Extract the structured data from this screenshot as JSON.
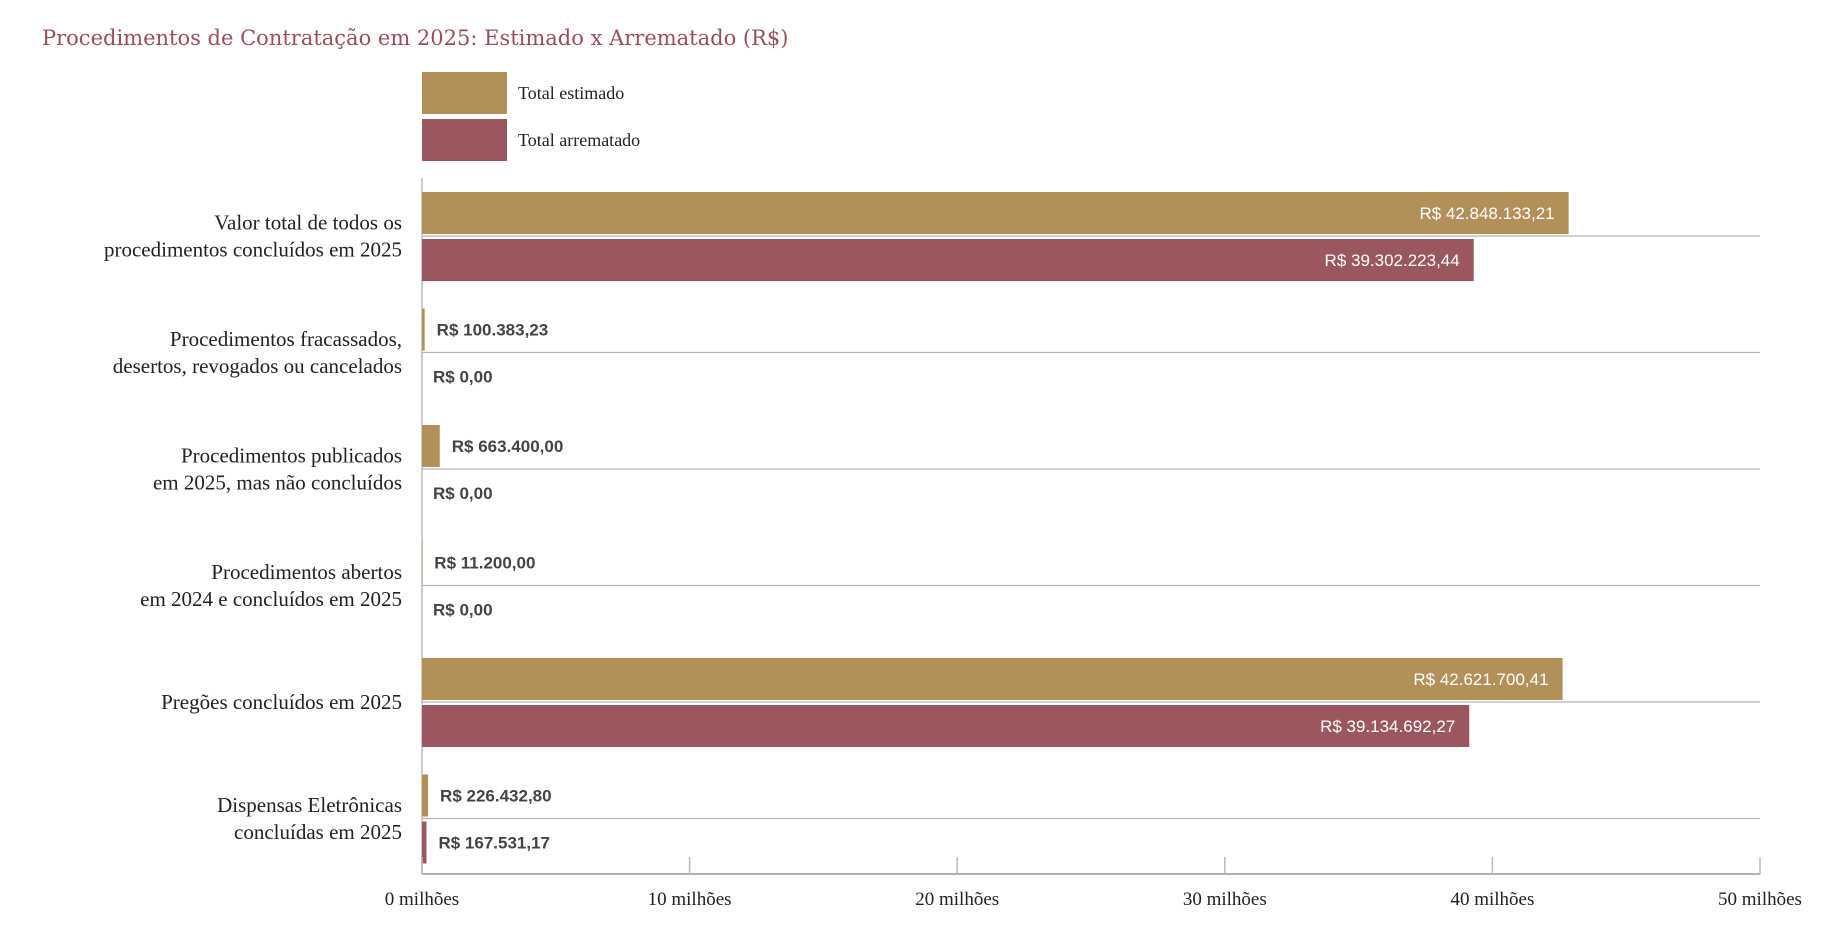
{
  "chart_data": {
    "type": "bar",
    "orientation": "horizontal",
    "title": "Procedimentos de Contratação em 2025: Estimado x Arrematado (R$)",
    "categories": [
      [
        "Valor total de todos os",
        "procedimentos concluídos em 2025"
      ],
      [
        "Procedimentos fracassados,",
        "desertos, revogados ou cancelados"
      ],
      [
        "Procedimentos publicados",
        "em 2025, mas não concluídos"
      ],
      [
        "Procedimentos abertos",
        "em 2024 e concluídos em 2025"
      ],
      [
        "Pregões concluídos em 2025"
      ],
      [
        "Dispensas Eletrônicas",
        "concluídas em 2025"
      ]
    ],
    "series": [
      {
        "name": "Total estimado",
        "color": "#b38f5a",
        "values": [
          42848133.21,
          100383.23,
          663400.0,
          11200.0,
          42621700.41,
          226432.8
        ],
        "labels": [
          "R$ 42.848.133,21",
          "R$ 100.383,23",
          "R$ 663.400,00",
          "R$ 11.200,00",
          "R$ 42.621.700,41",
          "R$ 226.432,80"
        ]
      },
      {
        "name": "Total arrematado",
        "color": "#9a585e",
        "values": [
          39302223.44,
          0,
          0,
          0,
          39134692.27,
          167531.17
        ],
        "labels": [
          "R$ 39.302.223,44",
          "R$ 0,00",
          "R$ 0,00",
          "R$ 0,00",
          "R$ 39.134.692,27",
          "R$ 167.531,17"
        ]
      }
    ],
    "xlim": [
      0,
      50000000
    ],
    "xticks": [
      0,
      10000000,
      20000000,
      30000000,
      40000000,
      50000000
    ],
    "xtick_labels": [
      "0 milhões",
      "10 milhões",
      "20 milhões",
      "30 milhões",
      "40 milhões",
      "50 milhões"
    ],
    "legend_position": "top-left",
    "grid": false,
    "title_color": "#9a4f58"
  }
}
